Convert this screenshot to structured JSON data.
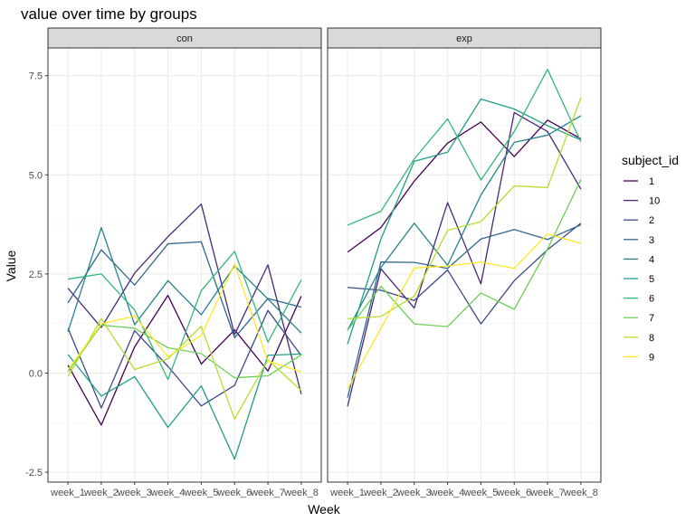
{
  "chart_data": {
    "type": "line",
    "title": "value over time by groups",
    "xlabel": "Week",
    "ylabel": "Value",
    "categories": [
      "week_1",
      "week_2",
      "week_3",
      "week_4",
      "week_5",
      "week_6",
      "week_7",
      "week_8"
    ],
    "ylim": [
      -2.75,
      8.2
    ],
    "yticks": [
      -2.5,
      0.0,
      2.5,
      5.0,
      7.5
    ],
    "ytick_labels": [
      "-2.5",
      "0.0",
      "2.5",
      "5.0",
      "7.5"
    ],
    "grid": true,
    "legend": {
      "title": "subject_id",
      "placement": "right"
    },
    "panels": [
      {
        "name": "con",
        "series": [
          {
            "name": "1",
            "color": "#440154",
            "values": [
              0.2,
              -1.31,
              0.66,
              1.96,
              0.23,
              1.09,
              0.05,
              1.94
            ]
          },
          {
            "name": "10",
            "color": "#482878",
            "values": [
              2.14,
              1.15,
              2.52,
              3.44,
              4.26,
              0.97,
              2.73,
              -0.53
            ]
          },
          {
            "name": "2",
            "color": "#3e4989",
            "values": [
              1.13,
              -0.88,
              1.07,
              0.17,
              -0.83,
              -0.31,
              1.58,
              0.44
            ]
          },
          {
            "name": "3",
            "color": "#31688e",
            "values": [
              1.77,
              3.11,
              2.22,
              3.26,
              3.31,
              0.89,
              1.88,
              1.66
            ]
          },
          {
            "name": "4",
            "color": "#26828e",
            "values": [
              1.04,
              3.67,
              1.22,
              2.33,
              1.47,
              2.7,
              1.87,
              1.01
            ]
          },
          {
            "name": "5",
            "color": "#1f9e89",
            "values": [
              0.47,
              -0.58,
              -0.09,
              -1.37,
              -0.32,
              -2.17,
              0.45,
              0.48
            ]
          },
          {
            "name": "6",
            "color": "#35b779",
            "values": [
              2.37,
              2.5,
              1.59,
              -0.16,
              2.08,
              3.07,
              0.78,
              2.35
            ]
          },
          {
            "name": "7",
            "color": "#6ece58",
            "values": [
              0.03,
              1.21,
              1.13,
              0.64,
              0.49,
              -0.12,
              -0.07,
              0.46
            ]
          },
          {
            "name": "8",
            "color": "#b5de2b",
            "values": [
              -0.09,
              1.37,
              0.09,
              0.36,
              1.18,
              -1.16,
              0.33,
              -0.44
            ]
          },
          {
            "name": "9",
            "color": "#fde725",
            "values": [
              0.08,
              1.24,
              1.44,
              0.41,
              0.95,
              2.75,
              0.3,
              0.03
            ]
          }
        ]
      },
      {
        "name": "exp",
        "series": [
          {
            "name": "1",
            "color": "#440154",
            "values": [
              3.05,
              3.67,
              4.84,
              5.8,
              6.33,
              5.46,
              6.38,
              5.91
            ]
          },
          {
            "name": "10",
            "color": "#482878",
            "values": [
              -0.84,
              2.63,
              1.64,
              4.3,
              2.25,
              6.57,
              6.09,
              4.64
            ]
          },
          {
            "name": "2",
            "color": "#3e4989",
            "values": [
              2.16,
              2.09,
              1.83,
              2.6,
              1.24,
              2.33,
              3.11,
              3.78
            ]
          },
          {
            "name": "3",
            "color": "#31688e",
            "values": [
              -0.62,
              2.8,
              2.79,
              2.64,
              3.38,
              3.62,
              3.37,
              3.74
            ]
          },
          {
            "name": "4",
            "color": "#26828e",
            "values": [
              1.08,
              2.66,
              3.78,
              2.72,
              4.49,
              5.82,
              6.0,
              6.49
            ]
          },
          {
            "name": "5",
            "color": "#1f9e89",
            "values": [
              0.73,
              3.38,
              5.34,
              5.57,
              6.91,
              6.66,
              6.24,
              5.88
            ]
          },
          {
            "name": "6",
            "color": "#35b779",
            "values": [
              3.73,
              4.08,
              5.4,
              6.41,
              4.87,
              6.09,
              7.66,
              5.83
            ]
          },
          {
            "name": "7",
            "color": "#6ece58",
            "values": [
              1.08,
              2.19,
              1.24,
              1.17,
              2.02,
              1.61,
              3.13,
              4.88
            ]
          },
          {
            "name": "8",
            "color": "#b5de2b",
            "values": [
              1.37,
              1.43,
              1.94,
              3.6,
              3.82,
              4.72,
              4.68,
              6.95
            ]
          },
          {
            "name": "9",
            "color": "#fde725",
            "values": [
              -0.4,
              1.13,
              2.65,
              2.7,
              2.8,
              2.64,
              3.51,
              3.27
            ]
          }
        ]
      }
    ]
  }
}
